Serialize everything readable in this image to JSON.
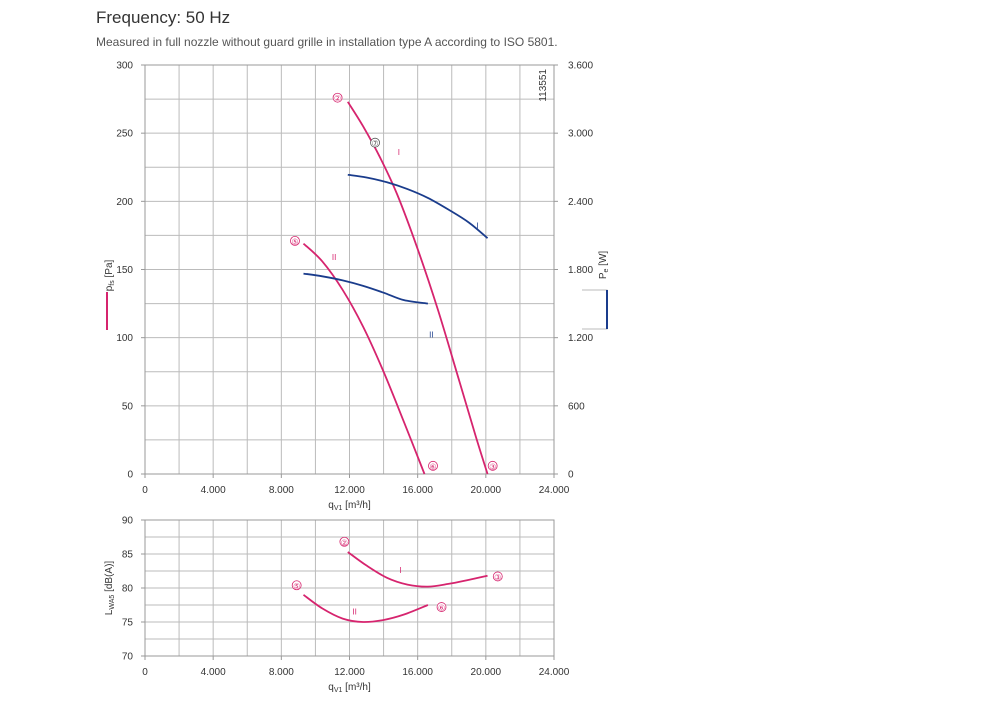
{
  "header": {
    "title": "Frequency: 50 Hz",
    "subtitle": "Measured in full nozzle without guard grille in installation type A according to ISO 5801."
  },
  "colors": {
    "pressure": "#d6246e",
    "power": "#1a3c8c",
    "grid": "#bbbbbb"
  },
  "chart_data": [
    {
      "type": "line",
      "id": "pressure-power",
      "xlabel": "q",
      "xlabel_sub": "V1",
      "xlabel_unit": " [m³/h]",
      "ylabel": "p",
      "ylabel_sub": "fs",
      "ylabel_unit": " [Pa]",
      "y2label": "P",
      "y2label_sub": "e",
      "y2label_unit": " [W]",
      "code": "113551",
      "xlim": [
        0,
        24000
      ],
      "ylim": [
        0,
        300
      ],
      "y2lim": [
        0,
        3600
      ],
      "xticks": [
        0,
        4000,
        8000,
        12000,
        16000,
        20000,
        24000
      ],
      "xtick_labels": [
        "0",
        "4.000",
        "8.000",
        "12.000",
        "16.000",
        "20.000",
        "24.000"
      ],
      "yticks": [
        0,
        50,
        100,
        150,
        200,
        250,
        300
      ],
      "ytick_labels": [
        "0",
        "50",
        "100",
        "150",
        "200",
        "250",
        "300"
      ],
      "y2ticks": [
        0,
        600,
        1200,
        1800,
        2400,
        3000,
        3600
      ],
      "y2tick_labels": [
        "0",
        "600",
        "1.200",
        "1.800",
        "2.400",
        "3.000",
        "3.600"
      ],
      "series": [
        {
          "kind": "pressure",
          "axis": "left",
          "x": [
            11900,
            12800,
            13800,
            14800,
            16000,
            17200,
            18400,
            19400,
            20100
          ],
          "y": [
            273,
            255,
            232,
            205,
            165,
            120,
            70,
            28,
            0
          ]
        },
        {
          "kind": "pressure",
          "axis": "left",
          "x": [
            9300,
            10400,
            11600,
            12800,
            14000,
            15200,
            16400
          ],
          "y": [
            169,
            156,
            135,
            108,
            75,
            38,
            0
          ]
        },
        {
          "kind": "power",
          "axis": "right",
          "x": [
            11900,
            13000,
            14200,
            15400,
            16600,
            17800,
            19000,
            20100
          ],
          "y": [
            2634,
            2610,
            2568,
            2508,
            2430,
            2328,
            2214,
            2076
          ]
        },
        {
          "kind": "power",
          "axis": "right",
          "x": [
            9300,
            10400,
            11600,
            12800,
            14000,
            15200,
            16600
          ],
          "y": [
            1764,
            1740,
            1704,
            1656,
            1596,
            1530,
            1500
          ]
        }
      ],
      "markers": [
        {
          "label": "②",
          "x": 11300,
          "y": 276,
          "color": "#d6246e"
        },
        {
          "label": "⑤",
          "x": 8800,
          "y": 171,
          "color": "#d6246e"
        },
        {
          "label": "⑥",
          "x": 16900,
          "y": 6,
          "color": "#d6246e"
        },
        {
          "label": "③",
          "x": 20400,
          "y": 6,
          "color": "#d6246e"
        },
        {
          "label": "⑦",
          "x": 13500,
          "y": 243,
          "color": "#555555"
        }
      ],
      "curve_labels": [
        {
          "label": "I",
          "x": 14900,
          "y": 234,
          "color": "#d6246e"
        },
        {
          "label": "II",
          "x": 11100,
          "y": 157,
          "color": "#d6246e"
        },
        {
          "label": "I",
          "x": 19500,
          "y": 2160,
          "axis": "right",
          "color": "#1a3c8c"
        },
        {
          "label": "II",
          "x": 16800,
          "y": 1200,
          "axis": "right",
          "color": "#1a3c8c"
        }
      ]
    },
    {
      "type": "line",
      "id": "sound",
      "xlabel": "q",
      "xlabel_sub": "V1",
      "xlabel_unit": " [m³/h]",
      "ylabel": "L",
      "ylabel_sub": "WA5",
      "ylabel_unit": " [dB(A)]",
      "xlim": [
        0,
        24000
      ],
      "ylim": [
        70,
        90
      ],
      "xticks": [
        0,
        4000,
        8000,
        12000,
        16000,
        20000,
        24000
      ],
      "xtick_labels": [
        "0",
        "4.000",
        "8.000",
        "12.000",
        "16.000",
        "20.000",
        "24.000"
      ],
      "yticks": [
        70,
        75,
        80,
        85,
        90
      ],
      "ytick_labels": [
        "70",
        "75",
        "80",
        "85",
        "90"
      ],
      "series": [
        {
          "kind": "pressure",
          "x": [
            11900,
            13000,
            14200,
            15400,
            16600,
            17800,
            19000,
            20100
          ],
          "y": [
            85.3,
            83.3,
            81.5,
            80.5,
            80.2,
            80.6,
            81.2,
            81.8
          ]
        },
        {
          "kind": "pressure",
          "x": [
            9300,
            10400,
            11600,
            12800,
            14000,
            15200,
            16600
          ],
          "y": [
            79.0,
            77.0,
            75.5,
            75.0,
            75.3,
            76.1,
            77.5
          ]
        }
      ],
      "markers": [
        {
          "label": "②",
          "x": 11700,
          "y": 86.8,
          "color": "#d6246e"
        },
        {
          "label": "⑤",
          "x": 8900,
          "y": 80.4,
          "color": "#d6246e"
        },
        {
          "label": "③",
          "x": 20700,
          "y": 81.7,
          "color": "#d6246e"
        },
        {
          "label": "⑥",
          "x": 17400,
          "y": 77.2,
          "color": "#d6246e"
        }
      ],
      "curve_labels": [
        {
          "label": "I",
          "x": 15000,
          "y": 82.2,
          "color": "#d6246e"
        },
        {
          "label": "II",
          "x": 12300,
          "y": 76.1,
          "color": "#d6246e"
        }
      ]
    }
  ]
}
